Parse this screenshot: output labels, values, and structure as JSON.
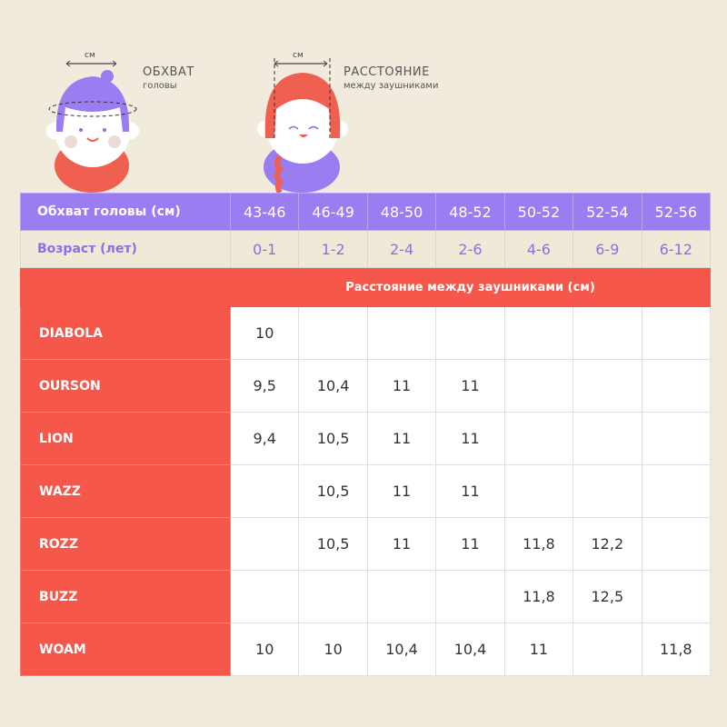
{
  "illustration": {
    "boy": {
      "measure_unit": "см",
      "title": "ОБХВАТ",
      "subtitle": "головы"
    },
    "girl": {
      "measure_unit": "см",
      "title": "РАССТОЯНИЕ",
      "subtitle": "между заушниками"
    }
  },
  "colors": {
    "background": "#f1ebdd",
    "purple": "#9a7df1",
    "red": "#f6574b"
  },
  "table": {
    "head_circ_label": "Обхват головы (см)",
    "head_circ": [
      "43-46",
      "46-49",
      "48-50",
      "48-52",
      "50-52",
      "52-54",
      "52-56"
    ],
    "age_label": "Возраст (лет)",
    "ages": [
      "0-1",
      "1-2",
      "2-4",
      "2-6",
      "4-6",
      "6-9",
      "6-12"
    ],
    "band_label": "Расстояние между заушниками (см)",
    "rows": [
      {
        "name": "DIABOLA",
        "values": [
          "10",
          "",
          "",
          "",
          "",
          "",
          ""
        ]
      },
      {
        "name": "OURSON",
        "values": [
          "9,5",
          "10,4",
          "11",
          "11",
          "",
          "",
          ""
        ]
      },
      {
        "name": "LION",
        "values": [
          "9,4",
          "10,5",
          "11",
          "11",
          "",
          "",
          ""
        ]
      },
      {
        "name": "WAZZ",
        "values": [
          "",
          "10,5",
          "11",
          "11",
          "",
          "",
          ""
        ]
      },
      {
        "name": "ROZZ",
        "values": [
          "",
          "10,5",
          "11",
          "11",
          "11,8",
          "12,2",
          ""
        ]
      },
      {
        "name": "BUZZ",
        "values": [
          "",
          "",
          "",
          "",
          "11,8",
          "12,5",
          ""
        ]
      },
      {
        "name": "WOAM",
        "values": [
          "10",
          "10",
          "10,4",
          "10,4",
          "11",
          "",
          "11,8"
        ]
      }
    ]
  }
}
